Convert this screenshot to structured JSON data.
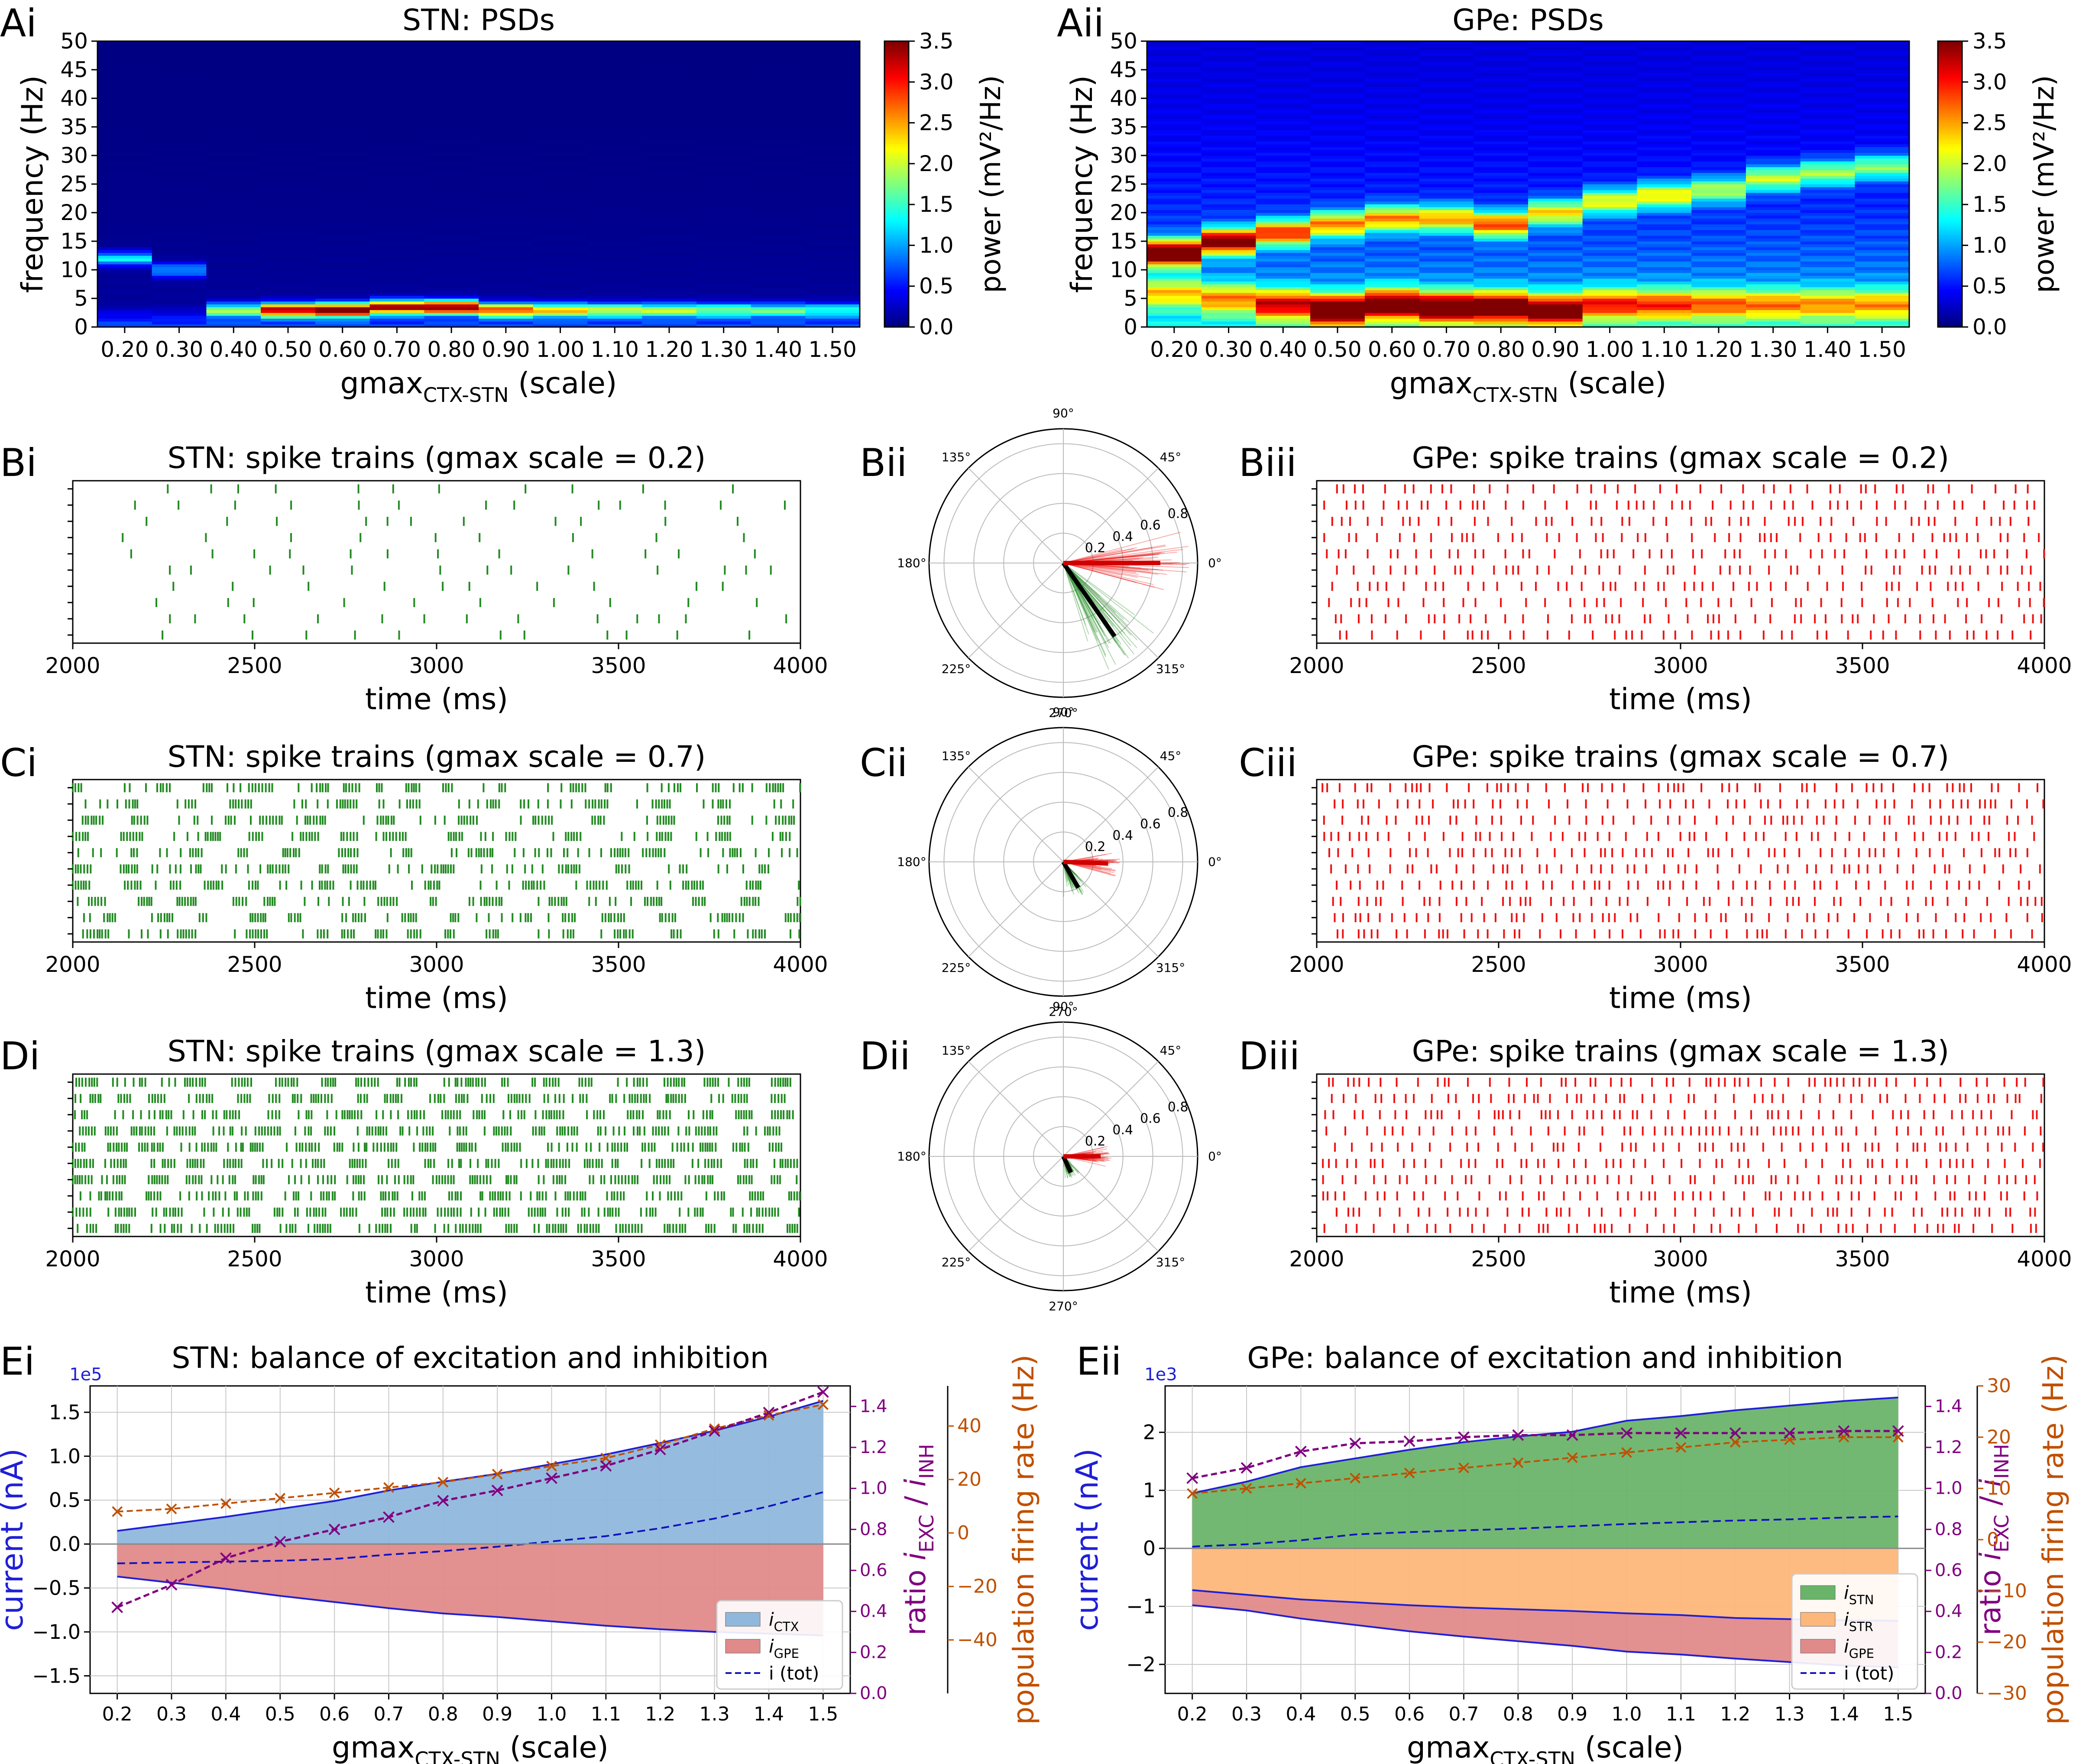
{
  "panel_labels": {
    "Ai": "Ai",
    "Aii": "Aii",
    "Bi": "Bi",
    "Bii": "Bii",
    "Biii": "Biii",
    "Ci": "Ci",
    "Cii": "Cii",
    "Ciii": "Ciii",
    "Di": "Di",
    "Dii": "Dii",
    "Diii": "Diii",
    "Ei": "Ei",
    "Eii": "Eii"
  },
  "colors": {
    "stn_spike": "#228b22",
    "gpe_spike": "#ee1111",
    "inh_fill": "#e08a8a",
    "ctx_fill": "#8fb8dc",
    "stn_fill": "#6ab46a",
    "str_fill": "#fdb77a",
    "ratio": "#800080",
    "rate": "#c05000",
    "axis_blue": "#1f1fd6"
  },
  "chart_data": [
    {
      "id": "Ai",
      "type": "heatmap",
      "title": "STN: PSDs",
      "ylabel": "frequency (Hz)",
      "xlabel_base": "gmax",
      "xlabel_sub": "CTX-STN",
      "xlabel_tail": "(scale)",
      "ylim": [
        0,
        50
      ],
      "yticks": [
        "0",
        "5",
        "10",
        "15",
        "20",
        "25",
        "30",
        "35",
        "40",
        "45",
        "50"
      ],
      "categories": [
        "0.20",
        "0.30",
        "0.40",
        "0.50",
        "0.60",
        "0.70",
        "0.80",
        "0.90",
        "1.00",
        "1.10",
        "1.20",
        "1.30",
        "1.40",
        "1.50"
      ],
      "colorbar": {
        "label": "power (mV²/Hz)",
        "range": [
          0,
          3.5
        ],
        "ticks": [
          "0.0",
          "0.5",
          "1.0",
          "1.5",
          "2.0",
          "2.5",
          "3.0",
          "3.5"
        ]
      },
      "peaks": [
        {
          "f": 12,
          "p": 1.2
        },
        {
          "f": 10,
          "p": 0.9
        },
        {
          "f": 3,
          "p": 1.6
        },
        {
          "f": 3,
          "p": 3.1
        },
        {
          "f": 3,
          "p": 3.5
        },
        {
          "f": 3.5,
          "p": 3.2
        },
        {
          "f": 3.5,
          "p": 3.4
        },
        {
          "f": 3,
          "p": 2.6
        },
        {
          "f": 3,
          "p": 2.1
        },
        {
          "f": 3,
          "p": 1.8
        },
        {
          "f": 3,
          "p": 1.7
        },
        {
          "f": 3,
          "p": 1.5
        },
        {
          "f": 3,
          "p": 1.4
        },
        {
          "f": 3,
          "p": 1.2
        }
      ]
    },
    {
      "id": "Aii",
      "type": "heatmap",
      "title": "GPe: PSDs",
      "ylabel": "frequency (Hz)",
      "xlabel_base": "gmax",
      "xlabel_sub": "CTX-STN",
      "xlabel_tail": "(scale)",
      "ylim": [
        0,
        50
      ],
      "yticks": [
        "0",
        "5",
        "10",
        "15",
        "20",
        "25",
        "30",
        "35",
        "40",
        "45",
        "50"
      ],
      "categories": [
        "0.20",
        "0.30",
        "0.40",
        "0.50",
        "0.60",
        "0.70",
        "0.80",
        "0.90",
        "1.00",
        "1.10",
        "1.20",
        "1.30",
        "1.40",
        "1.50"
      ],
      "colorbar": {
        "label": "power (mV²/Hz)",
        "range": [
          0,
          3.5
        ],
        "ticks": [
          "0.0",
          "0.5",
          "1.0",
          "1.5",
          "2.0",
          "2.5",
          "3.0",
          "3.5"
        ]
      },
      "peaks": [
        {
          "f": 13,
          "p": 3.5
        },
        {
          "f": 15,
          "p": 3.0
        },
        {
          "f": 16.5,
          "p": 2.3
        },
        {
          "f": 18,
          "p": 2.0
        },
        {
          "f": 19,
          "p": 2.0
        },
        {
          "f": 19,
          "p": 1.9
        },
        {
          "f": 18,
          "p": 2.2
        },
        {
          "f": 20,
          "p": 1.7
        },
        {
          "f": 22,
          "p": 1.6
        },
        {
          "f": 23,
          "p": 1.7
        },
        {
          "f": 24,
          "p": 1.4
        },
        {
          "f": 26,
          "p": 1.5
        },
        {
          "f": 27,
          "p": 1.4
        },
        {
          "f": 28,
          "p": 1.3
        }
      ],
      "low": [
        {
          "f": 6,
          "p": 1.4
        },
        {
          "f": 5,
          "p": 1.6
        },
        {
          "f": 4,
          "p": 2.2
        },
        {
          "f": 3,
          "p": 3.2
        },
        {
          "f": 4,
          "p": 2.9
        },
        {
          "f": 3.5,
          "p": 3.0
        },
        {
          "f": 3.5,
          "p": 3.0
        },
        {
          "f": 3,
          "p": 2.8
        },
        {
          "f": 4,
          "p": 2.0
        },
        {
          "f": 4,
          "p": 1.9
        },
        {
          "f": 4,
          "p": 1.7
        },
        {
          "f": 4,
          "p": 1.6
        },
        {
          "f": 4,
          "p": 1.5
        },
        {
          "f": 4,
          "p": 1.5
        }
      ]
    },
    {
      "id": "Bi",
      "type": "raster",
      "title": "STN: spike trains (gmax scale = 0.2)",
      "xlabel": "time (ms)",
      "xlim": [
        2000,
        4000
      ],
      "xticks": [
        "2000",
        "2500",
        "3000",
        "3500",
        "4000"
      ],
      "n_units": 10,
      "rate_hz": 6,
      "burst": 0,
      "seed": 11
    },
    {
      "id": "Biii",
      "type": "raster",
      "title": "GPe: spike trains (gmax scale = 0.2)",
      "xlabel": "time (ms)",
      "xlim": [
        2000,
        4000
      ],
      "xticks": [
        "2000",
        "2500",
        "3000",
        "3500",
        "4000"
      ],
      "n_units": 10,
      "rate_hz": 24,
      "burst": 0,
      "seed": 12
    },
    {
      "id": "Ci",
      "type": "raster",
      "title": "STN: spike trains (gmax scale = 0.7)",
      "xlabel": "time (ms)",
      "xlim": [
        2000,
        4000
      ],
      "xticks": [
        "2000",
        "2500",
        "3000",
        "3500",
        "4000"
      ],
      "n_units": 10,
      "rate_hz": 38,
      "burst": 1,
      "seed": 21
    },
    {
      "id": "Ciii",
      "type": "raster",
      "title": "GPe: spike trains (gmax scale = 0.7)",
      "xlabel": "time (ms)",
      "xlim": [
        2000,
        4000
      ],
      "xticks": [
        "2000",
        "2500",
        "3000",
        "3500",
        "4000"
      ],
      "n_units": 10,
      "rate_hz": 28,
      "burst": 0,
      "seed": 22
    },
    {
      "id": "Di",
      "type": "raster",
      "title": "STN: spike trains (gmax scale = 1.3)",
      "xlabel": "time (ms)",
      "xlim": [
        2000,
        4000
      ],
      "xticks": [
        "2000",
        "2500",
        "3000",
        "3500",
        "4000"
      ],
      "n_units": 10,
      "rate_hz": 62,
      "burst": 1,
      "seed": 31
    },
    {
      "id": "Diii",
      "type": "raster",
      "title": "GPe: spike trains (gmax scale = 1.3)",
      "xlabel": "time (ms)",
      "xlim": [
        2000,
        4000
      ],
      "xticks": [
        "2000",
        "2500",
        "3000",
        "3500",
        "4000"
      ],
      "n_units": 10,
      "rate_hz": 28,
      "burst": 0,
      "seed": 32
    },
    {
      "id": "Bii",
      "type": "polar",
      "angle_ticks": [
        "90°",
        "45°",
        "0°",
        "315°",
        "270°",
        "225°",
        "180°",
        "135°"
      ],
      "r_ticks": [
        "0.2",
        "0.4",
        "0.6",
        "0.8"
      ],
      "rmax": 0.9,
      "red": {
        "mean_angle": 0,
        "length": 0.65,
        "spread": 10,
        "n": 60
      },
      "green": {
        "mean_angle": -55,
        "length": 0.6,
        "spread": 12,
        "n": 60
      }
    },
    {
      "id": "Cii",
      "type": "polar",
      "angle_ticks": [
        "90°",
        "45°",
        "0°",
        "315°",
        "270°",
        "225°",
        "180°",
        "135°"
      ],
      "r_ticks": [
        "0.2",
        "0.4",
        "0.6",
        "0.8"
      ],
      "rmax": 0.9,
      "red": {
        "mean_angle": -2,
        "length": 0.3,
        "spread": 8,
        "n": 50
      },
      "green": {
        "mean_angle": -60,
        "length": 0.2,
        "spread": 15,
        "n": 50
      }
    },
    {
      "id": "Dii",
      "type": "polar",
      "angle_ticks": [
        "90°",
        "45°",
        "0°",
        "315°",
        "270°",
        "225°",
        "180°",
        "135°"
      ],
      "r_ticks": [
        "0.2",
        "0.4",
        "0.6",
        "0.8"
      ],
      "rmax": 0.9,
      "red": {
        "mean_angle": 0,
        "length": 0.25,
        "spread": 8,
        "n": 50
      },
      "green": {
        "mean_angle": -65,
        "length": 0.12,
        "spread": 15,
        "n": 50
      }
    },
    {
      "id": "Ei",
      "type": "area",
      "title": "STN: balance of excitation and inhibition",
      "xlabel_base": "gmax",
      "xlabel_sub": "CTX-STN",
      "xlabel_tail": "(scale)",
      "ylabel": "current (nA)",
      "offset": "1e5",
      "ylim": [
        -1.7,
        1.8
      ],
      "yticks": [
        -1.5,
        -1.0,
        -0.5,
        0.0,
        0.5,
        1.0,
        1.5
      ],
      "x": [
        0.2,
        0.3,
        0.4,
        0.5,
        0.6,
        0.7,
        0.8,
        0.9,
        1.0,
        1.1,
        1.2,
        1.3,
        1.4,
        1.5
      ],
      "series": [
        {
          "name": "i_CTX",
          "values": [
            0.15,
            0.23,
            0.31,
            0.4,
            0.49,
            0.61,
            0.71,
            0.8,
            0.91,
            1.02,
            1.15,
            1.29,
            1.45,
            1.63
          ]
        },
        {
          "name": "i_GPE",
          "values": [
            -0.37,
            -0.44,
            -0.51,
            -0.59,
            -0.66,
            -0.73,
            -0.79,
            -0.83,
            -0.88,
            -0.93,
            -0.97,
            -1.0,
            -1.02,
            -1.04
          ]
        },
        {
          "name": "i (tot)",
          "values": [
            -0.22,
            -0.21,
            -0.2,
            -0.19,
            -0.17,
            -0.12,
            -0.08,
            -0.03,
            0.03,
            0.09,
            0.18,
            0.29,
            0.43,
            0.59
          ]
        }
      ],
      "legend": [
        {
          "main": "i",
          "sub": "CTX"
        },
        {
          "main": "i",
          "sub": "GPE"
        },
        {
          "main": "i (tot)",
          "sub": ""
        }
      ],
      "ratio": {
        "label_pre": "ratio ",
        "ylim": [
          0,
          1.5
        ],
        "ticks": [
          "0.0",
          "0.2",
          "0.4",
          "0.6",
          "0.8",
          "1.0",
          "1.2",
          "1.4"
        ],
        "values": [
          0.42,
          0.53,
          0.66,
          0.74,
          0.8,
          0.86,
          0.94,
          0.99,
          1.05,
          1.11,
          1.19,
          1.28,
          1.37,
          1.47
        ]
      },
      "rate": {
        "label": "population firing rate (Hz)",
        "ylim": [
          -60,
          55
        ],
        "ticks": [
          "40",
          "20",
          "0",
          "−20",
          "−40"
        ],
        "tick_values": [
          40,
          20,
          0,
          -20,
          -40
        ],
        "values": [
          8,
          9,
          11,
          13,
          15,
          17,
          19,
          22,
          25,
          28,
          33,
          39,
          44,
          48
        ]
      }
    },
    {
      "id": "Eii",
      "type": "area",
      "title": "GPe: balance of excitation and inhibition",
      "xlabel_base": "gmax",
      "xlabel_sub": "CTX-STN",
      "xlabel_tail": "(scale)",
      "ylabel": "current (nA)",
      "offset": "1e3",
      "ylim": [
        -2.5,
        2.8
      ],
      "yticks": [
        -2,
        -1,
        0,
        1,
        2
      ],
      "x": [
        0.2,
        0.3,
        0.4,
        0.5,
        0.6,
        0.7,
        0.8,
        0.9,
        1.0,
        1.1,
        1.2,
        1.3,
        1.4,
        1.5
      ],
      "series": [
        {
          "name": "i_STN",
          "values": [
            0.95,
            1.15,
            1.4,
            1.55,
            1.7,
            1.83,
            1.93,
            2.01,
            2.2,
            2.28,
            2.38,
            2.46,
            2.54,
            2.6
          ]
        },
        {
          "name": "i_STR",
          "values": [
            -0.72,
            -0.8,
            -0.88,
            -0.93,
            -0.98,
            -1.02,
            -1.05,
            -1.08,
            -1.12,
            -1.15,
            -1.2,
            -1.22,
            -1.24,
            -1.25
          ]
        },
        {
          "name": "i_GPE",
          "values": [
            -0.98,
            -1.07,
            -1.21,
            -1.32,
            -1.43,
            -1.52,
            -1.6,
            -1.68,
            -1.78,
            -1.83,
            -1.9,
            -1.96,
            -2.02,
            -2.05
          ]
        },
        {
          "name": "i (tot)",
          "values": [
            0.03,
            0.07,
            0.14,
            0.24,
            0.28,
            0.31,
            0.34,
            0.38,
            0.42,
            0.45,
            0.48,
            0.5,
            0.53,
            0.55
          ]
        }
      ],
      "legend": [
        {
          "main": "i",
          "sub": "STN"
        },
        {
          "main": "i",
          "sub": "STR"
        },
        {
          "main": "i",
          "sub": "GPE"
        },
        {
          "main": "i (tot)",
          "sub": ""
        }
      ],
      "ratio": {
        "label_pre": "ratio ",
        "ylim": [
          0,
          1.5
        ],
        "ticks": [
          "0.0",
          "0.2",
          "0.4",
          "0.6",
          "0.8",
          "1.0",
          "1.2",
          "1.4"
        ],
        "values": [
          1.05,
          1.1,
          1.18,
          1.22,
          1.23,
          1.25,
          1.26,
          1.26,
          1.27,
          1.27,
          1.27,
          1.27,
          1.28,
          1.28
        ]
      },
      "rate": {
        "label": "population firing rate (Hz)",
        "ylim": [
          -30,
          30
        ],
        "ticks": [
          "30",
          "20",
          "10",
          "0",
          "−10",
          "−20",
          "−30"
        ],
        "tick_values": [
          30,
          20,
          10,
          0,
          -10,
          -20,
          -30
        ],
        "values": [
          9,
          10,
          11,
          12,
          13,
          14,
          15,
          16,
          17,
          18,
          19,
          19.5,
          20,
          20
        ]
      }
    }
  ]
}
